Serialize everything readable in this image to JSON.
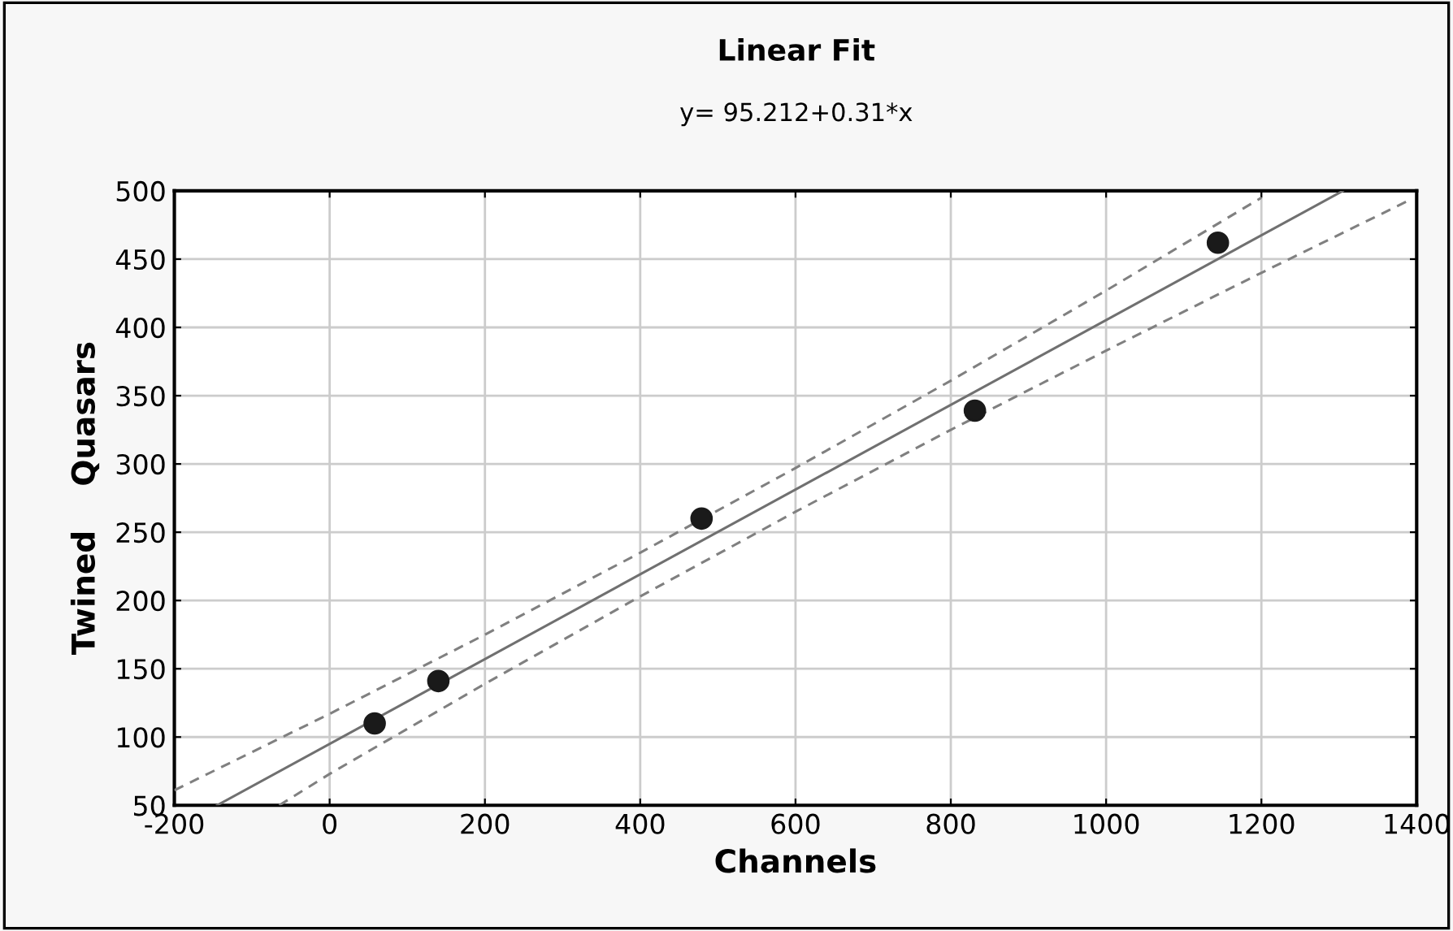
{
  "chart_data": {
    "type": "scatter",
    "title": "Linear Fit",
    "subtitle": "y= 95.212+0.31*x",
    "xlabel": "Channels",
    "ylabel": "Twined    Quasars",
    "xlim": [
      -200,
      1400
    ],
    "ylim": [
      50,
      500
    ],
    "xticks": [
      -200,
      0,
      200,
      400,
      600,
      800,
      1000,
      1200,
      1400
    ],
    "yticks": [
      50,
      100,
      150,
      200,
      250,
      300,
      350,
      400,
      450,
      500
    ],
    "grid": true,
    "series": [
      {
        "marker": "circle",
        "color": "#1a1a1a",
        "x": [
          58,
          140,
          479,
          831,
          1144
        ],
        "values": [
          110,
          141,
          260,
          339,
          462
        ]
      },
      {
        "type": "line",
        "color": "#707070",
        "line_style": "solid",
        "marker": "none",
        "x": [
          -145,
          1305
        ],
        "values": [
          50,
          500
        ]
      },
      {
        "type": "line",
        "color": "#808080",
        "line_style": "dashed",
        "marker": "none",
        "x": [
          -200,
          0,
          200,
          400,
          600,
          800,
          1000,
          1200
        ],
        "values": [
          61,
          117,
          175,
          235,
          297,
          361,
          427,
          495
        ]
      },
      {
        "type": "line",
        "color": "#808080",
        "line_style": "dashed",
        "marker": "none",
        "x": [
          -65,
          0,
          200,
          400,
          600,
          800,
          1000,
          1200,
          1390
        ],
        "values": [
          50,
          73,
          139,
          203,
          265,
          325,
          383,
          440,
          493
        ]
      }
    ]
  }
}
